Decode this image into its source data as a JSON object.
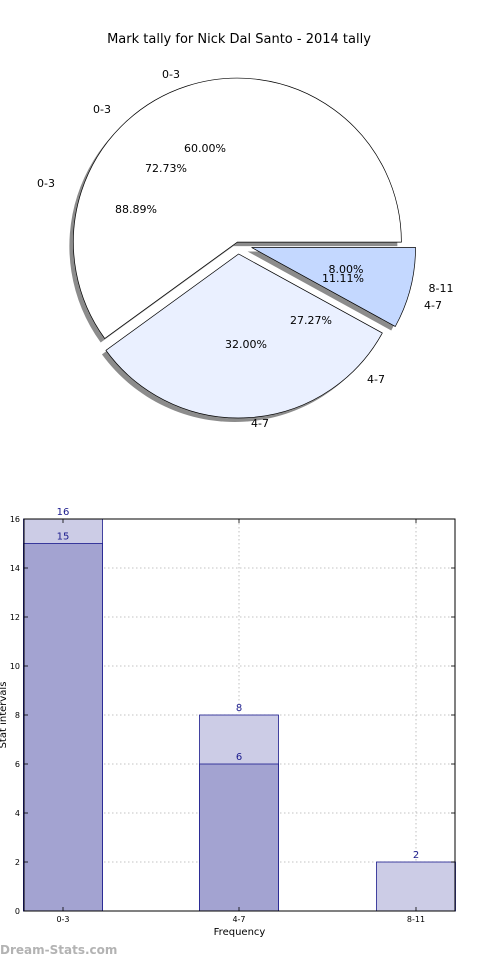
{
  "chart_data": [
    {
      "type": "pie",
      "title": "Mark tally for Nick Dal Santo - 2014 tally",
      "colors": {
        "0-3": "#ffffff",
        "4-7": "#eaf0ff",
        "8-11": "#c4d8ff"
      },
      "rings": [
        {
          "slices": [
            {
              "label": "0-3",
              "value": 15,
              "pct": "60.00%"
            },
            {
              "label": "4-7",
              "value": 8,
              "pct": "32.00%"
            },
            {
              "label": "8-11",
              "value": 2,
              "pct": "8.00%"
            }
          ]
        },
        {
          "slices": [
            {
              "label": "0-3",
              "pct": "72.73%"
            },
            {
              "label": "4-7",
              "pct": "27.27%"
            }
          ]
        },
        {
          "slices": [
            {
              "label": "0-3",
              "pct": "88.89%"
            },
            {
              "label": "4-7",
              "pct": "11.11%"
            }
          ]
        }
      ]
    },
    {
      "type": "bar",
      "xlabel": "Frequency",
      "ylabel": "Stat intervals",
      "categories": [
        "0-3",
        "4-7",
        "8-11"
      ],
      "ylim": [
        0,
        16
      ],
      "yticks": [
        0,
        2,
        4,
        6,
        8,
        10,
        12,
        14,
        16
      ],
      "grid": true,
      "series": [
        {
          "values": [
            16,
            8,
            2
          ],
          "color": "#cccce6"
        },
        {
          "values": [
            15,
            6,
            null
          ],
          "color": "#a3a3d1"
        }
      ]
    }
  ],
  "watermark": "Dream-Stats.com"
}
